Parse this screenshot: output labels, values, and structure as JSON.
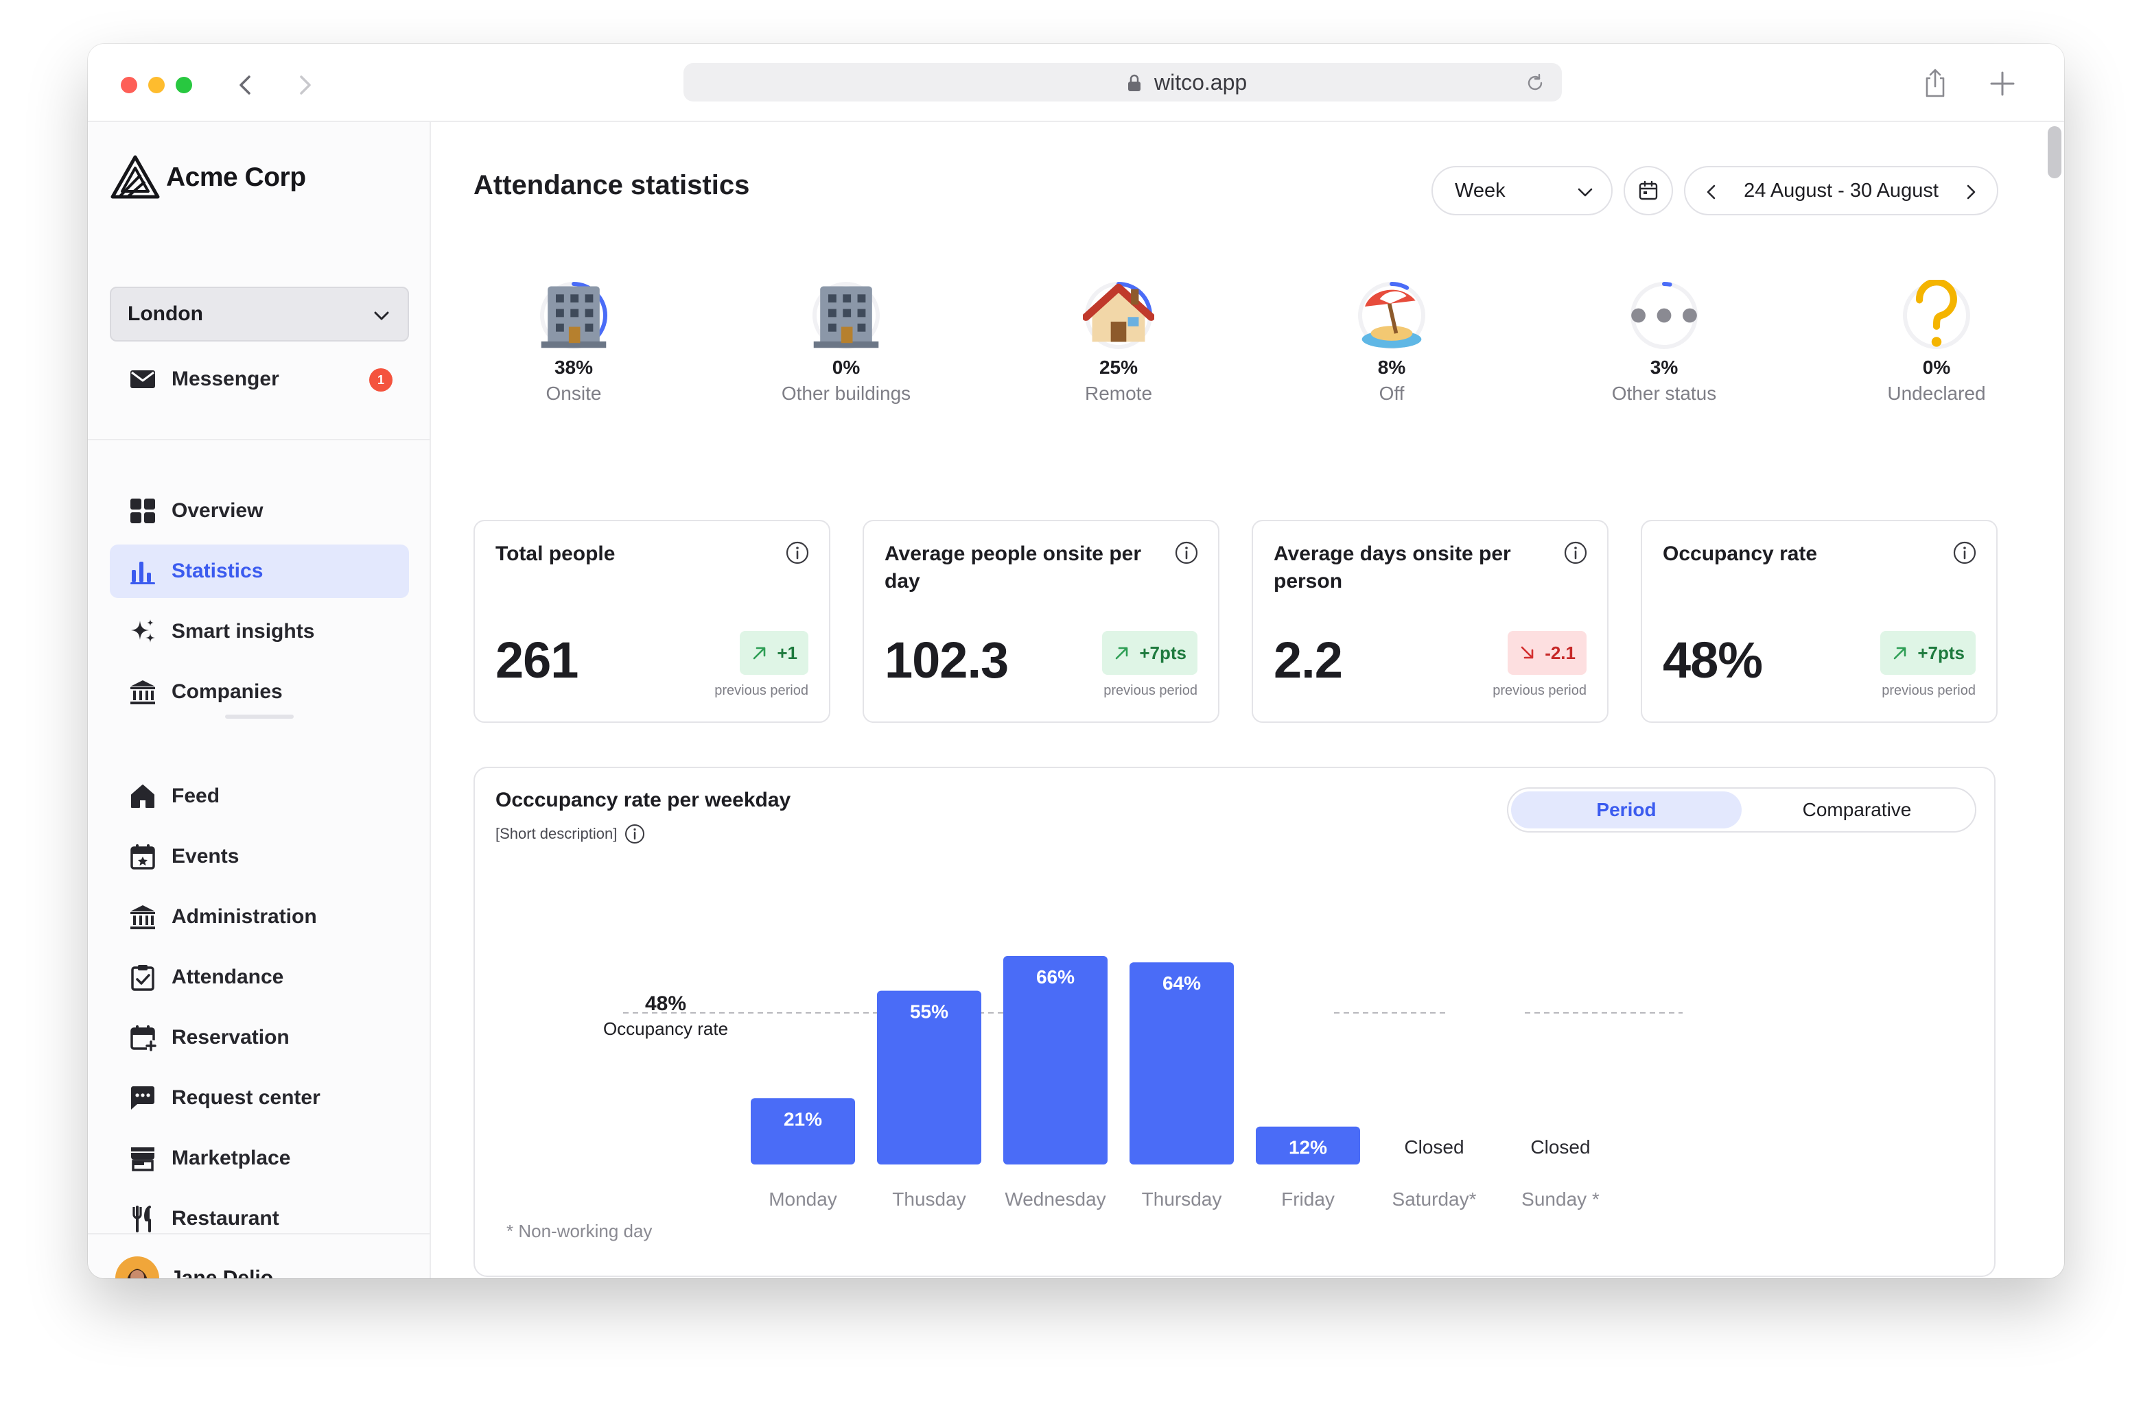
{
  "browser": {
    "url": "witco.app"
  },
  "sidebar": {
    "brand": "Acme Corp",
    "location": "London",
    "messenger": {
      "label": "Messenger",
      "badge": "1"
    },
    "primary": [
      {
        "id": "overview",
        "label": "Overview",
        "icon": "grid-icon"
      },
      {
        "id": "statistics",
        "label": "Statistics",
        "icon": "bar-chart-icon",
        "active": true
      },
      {
        "id": "smart-insights",
        "label": "Smart insights",
        "icon": "sparkle-icon"
      },
      {
        "id": "companies",
        "label": "Companies",
        "icon": "bank-icon"
      }
    ],
    "secondary": [
      {
        "id": "feed",
        "label": "Feed",
        "icon": "home-icon"
      },
      {
        "id": "events",
        "label": "Events",
        "icon": "calendar-star-icon"
      },
      {
        "id": "administration",
        "label": "Administration",
        "icon": "bank-icon"
      },
      {
        "id": "attendance",
        "label": "Attendance",
        "icon": "clipboard-check-icon"
      },
      {
        "id": "reservation",
        "label": "Reservation",
        "icon": "calendar-plus-icon"
      },
      {
        "id": "request-center",
        "label": "Request center",
        "icon": "chat-icon"
      },
      {
        "id": "marketplace",
        "label": "Marketplace",
        "icon": "store-icon"
      },
      {
        "id": "restaurant",
        "label": "Restaurant",
        "icon": "cutlery-icon"
      }
    ],
    "user": {
      "name": "Jane Delio"
    }
  },
  "header": {
    "title": "Attendance statistics",
    "period_select": "Week",
    "date_range": "24 August - 30 August"
  },
  "status_breakdown": [
    {
      "id": "onsite",
      "pct": "38%",
      "label": "Onsite",
      "fraction": 0.38,
      "icon": "office-building-icon"
    },
    {
      "id": "other-buildings",
      "pct": "0%",
      "label": "Other buildings",
      "fraction": 0,
      "icon": "office-building-icon"
    },
    {
      "id": "remote",
      "pct": "25%",
      "label": "Remote",
      "fraction": 0.25,
      "icon": "house-icon"
    },
    {
      "id": "off",
      "pct": "8%",
      "label": "Off",
      "fraction": 0.08,
      "icon": "beach-umbrella-icon"
    },
    {
      "id": "other-status",
      "pct": "3%",
      "label": "Other status",
      "fraction": 0.03,
      "icon": "ellipsis-icon"
    },
    {
      "id": "undeclared",
      "pct": "0%",
      "label": "Undeclared",
      "fraction": 0,
      "icon": "question-mark-icon"
    }
  ],
  "kpis": [
    {
      "id": "total-people",
      "title": "Total people",
      "value": "261",
      "delta": "+1",
      "trend": "up",
      "sub": "previous period"
    },
    {
      "id": "avg-people-onsite",
      "title": "Average people onsite per day",
      "value": "102.3",
      "delta": "+7pts",
      "trend": "up",
      "sub": "previous period"
    },
    {
      "id": "avg-days-onsite",
      "title": "Average days onsite per person",
      "value": "2.2",
      "delta": "-2.1",
      "trend": "down",
      "sub": "previous period"
    },
    {
      "id": "occupancy-rate",
      "title": "Occupancy rate",
      "value": "48%",
      "delta": "+7pts",
      "trend": "up",
      "sub": "previous period"
    }
  ],
  "chart_card": {
    "title": "Occcupancy rate per weekday",
    "description": "[Short description]",
    "toggle": {
      "period": "Period",
      "comparative": "Comparative",
      "selected": "Period"
    },
    "footnote": "* Non-working day"
  },
  "chart_data": {
    "type": "bar",
    "categories": [
      "Monday",
      "Thusday",
      "Wednesday",
      "Thursday",
      "Friday",
      "Saturday*",
      "Sunday *"
    ],
    "values": [
      21,
      55,
      66,
      64,
      12,
      null,
      null
    ],
    "value_labels": [
      "21%",
      "55%",
      "66%",
      "64%",
      "12%",
      "Closed",
      "Closed"
    ],
    "unit": "%",
    "ylim": [
      0,
      66
    ],
    "reference_line": {
      "value": 48,
      "label_value": "48%",
      "label": "Occupancy rate"
    },
    "bar_color": "#4a6cf7",
    "grid": false,
    "legend": "none"
  },
  "colors": {
    "accent": "#4a6cf7",
    "active_bg": "#e3e8fd",
    "up_bg": "#dff5e6",
    "down_bg": "#fddfe0",
    "badge": "#f4533e"
  }
}
